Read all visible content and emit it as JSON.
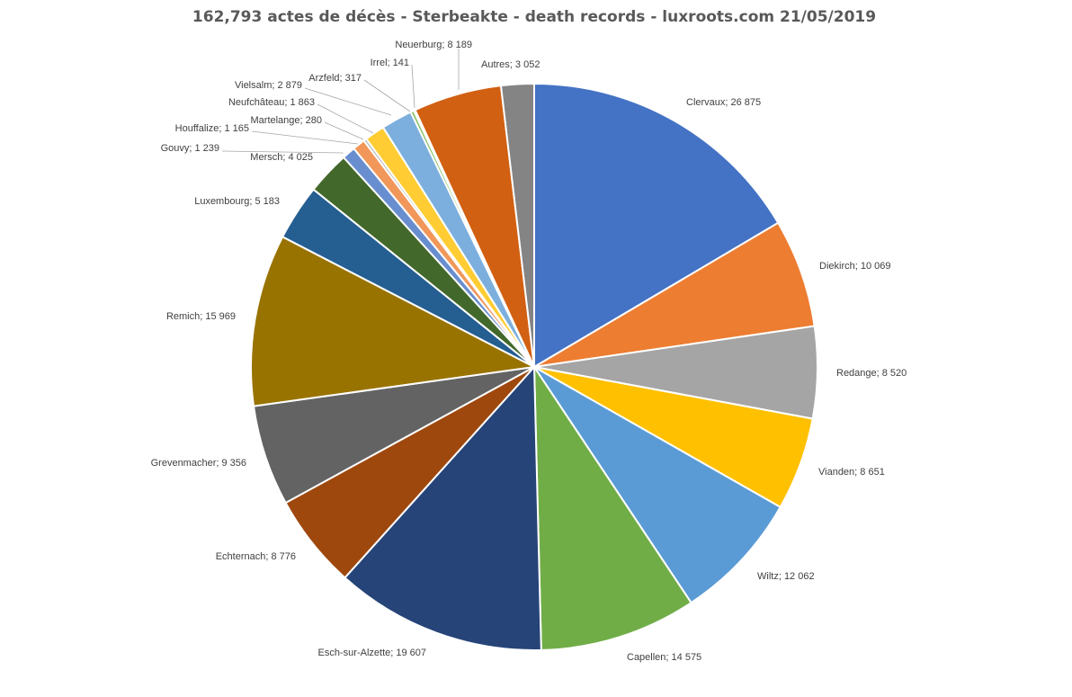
{
  "chart_data": {
    "type": "pie",
    "title": "162,793 actes de décès - Sterbeakte - death records - luxroots.com 21/05/2019",
    "total": 162793,
    "start_angle_deg": 0,
    "direction": "clockwise",
    "slices": [
      {
        "name": "Clervaux",
        "value": 26875,
        "label": "Clervaux; 26 875",
        "color": "#4472C4"
      },
      {
        "name": "Diekirch",
        "value": 10069,
        "label": "Diekirch; 10 069",
        "color": "#ED7D31"
      },
      {
        "name": "Redange",
        "value": 8520,
        "label": "Redange; 8 520",
        "color": "#A5A5A5"
      },
      {
        "name": "Vianden",
        "value": 8651,
        "label": "Vianden; 8 651",
        "color": "#FFC000"
      },
      {
        "name": "Wiltz",
        "value": 12062,
        "label": "Wiltz; 12 062",
        "color": "#5B9BD5"
      },
      {
        "name": "Capellen",
        "value": 14575,
        "label": "Capellen; 14 575",
        "color": "#70AD47"
      },
      {
        "name": "Esch-sur-Alzette",
        "value": 19607,
        "label": "Esch-sur-Alzette; 19 607",
        "color": "#264478"
      },
      {
        "name": "Echternach",
        "value": 8776,
        "label": "Echternach; 8 776",
        "color": "#9E480E"
      },
      {
        "name": "Grevenmacher",
        "value": 9356,
        "label": "Grevenmacher; 9 356",
        "color": "#636363"
      },
      {
        "name": "Remich",
        "value": 15969,
        "label": "Remich; 15 969",
        "color": "#997300"
      },
      {
        "name": "Luxembourg",
        "value": 5183,
        "label": "Luxembourg; 5 183",
        "color": "#255E91"
      },
      {
        "name": "Mersch",
        "value": 4025,
        "label": "Mersch; 4 025",
        "color": "#43682B"
      },
      {
        "name": "Gouvy",
        "value": 1239,
        "label": "Gouvy; 1 239",
        "color": "#698ED0"
      },
      {
        "name": "Houffalize",
        "value": 1165,
        "label": "Houffalize; 1 165",
        "color": "#F1975A"
      },
      {
        "name": "Martelange",
        "value": 280,
        "label": "Martelange; 280",
        "color": "#B7B7B7"
      },
      {
        "name": "Neufchâteau",
        "value": 1863,
        "label": "Neufchâteau; 1 863",
        "color": "#FFCD33"
      },
      {
        "name": "Vielsalm",
        "value": 2879,
        "label": "Vielsalm; 2 879",
        "color": "#7CAFDD"
      },
      {
        "name": "Arzfeld",
        "value": 317,
        "label": "Arzfeld; 317",
        "color": "#8CC168"
      },
      {
        "name": "Irrel",
        "value": 141,
        "label": "Irrel; 141",
        "color": "#335AA1"
      },
      {
        "name": "Neuerburg",
        "value": 8189,
        "label": "Neuerburg; 8 189",
        "color": "#D26012"
      },
      {
        "name": "Autres",
        "value": 3052,
        "label": "Autres; 3 052",
        "color": "#848484"
      }
    ]
  }
}
